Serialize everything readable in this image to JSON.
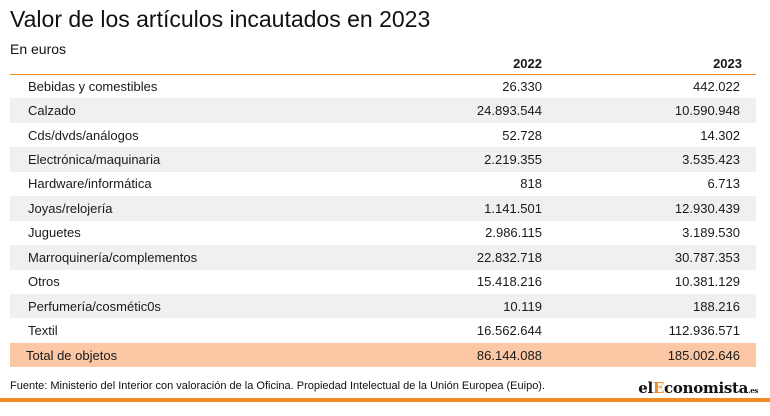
{
  "chart_data": {
    "type": "table",
    "title": "Valor de los artículos incautados en 2023",
    "subtitle": "En euros",
    "columns": [
      "",
      "2022",
      "2023"
    ],
    "rows": [
      {
        "category": "Bebidas y comestibles",
        "v2022": "26.330",
        "v2023": "442.022"
      },
      {
        "category": "Calzado",
        "v2022": "24.893.544",
        "v2023": "10.590.948"
      },
      {
        "category": "Cds/dvds/análogos",
        "v2022": "52.728",
        "v2023": "14.302"
      },
      {
        "category": "Electrónica/maquinaria",
        "v2022": "2.219.355",
        "v2023": "3.535.423"
      },
      {
        "category": "Hardware/informática",
        "v2022": "818",
        "v2023": "6.713"
      },
      {
        "category": "Joyas/relojería",
        "v2022": "1.141.501",
        "v2023": "12.930.439"
      },
      {
        "category": "Juguetes",
        "v2022": "2.986.115",
        "v2023": "3.189.530"
      },
      {
        "category": "Marroquinería/complementos",
        "v2022": "22.832.718",
        "v2023": "30.787.353"
      },
      {
        "category": "Otros",
        "v2022": "15.418.216",
        "v2023": "10.381.129"
      },
      {
        "category": "Perfumería/cosmétic0s",
        "v2022": "10.119",
        "v2023": "188.216"
      },
      {
        "category": "Textil",
        "v2022": "16.562.644",
        "v2023": "112.936.571"
      }
    ],
    "total": {
      "category": "Total de objetos",
      "v2022": "86.144.088",
      "v2023": "185.002.646"
    },
    "source": "Fuente: Ministerio del Interior con valoración de la Oficina. Propiedad Intelectual de la Unión Europea (Euipo)."
  },
  "logo": {
    "part1": "el",
    "part2": "E",
    "part3": "conomista",
    "part4": ".es"
  },
  "colors": {
    "accent": "#f08a24",
    "total_row": "#fbc7a5",
    "shade_row": "#f0f0f0"
  }
}
